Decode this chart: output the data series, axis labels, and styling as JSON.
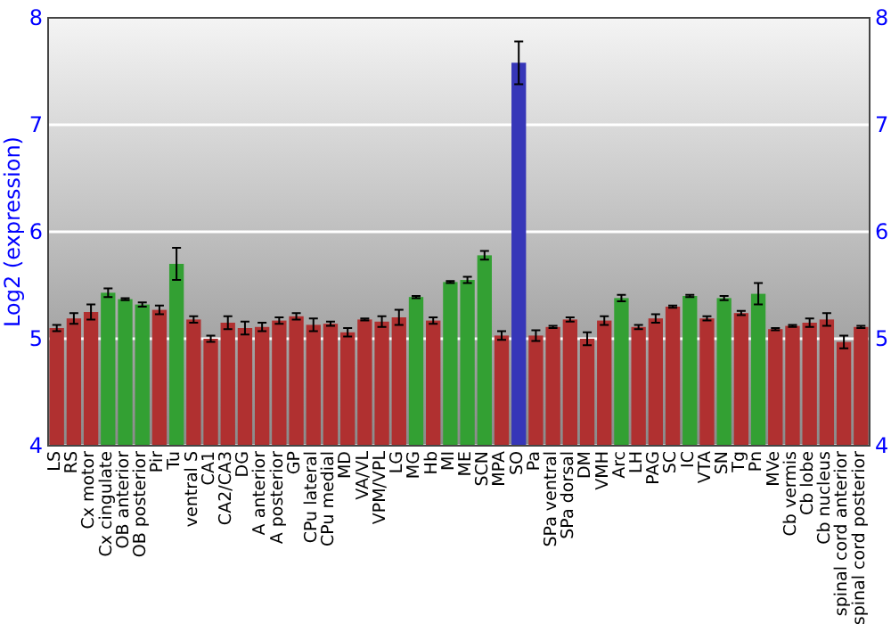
{
  "chart_data": {
    "type": "bar",
    "ylabel": "Log2 (expression)",
    "categories": [
      "LS",
      "RS",
      "Cx motor",
      "Cx cingulate",
      "OB anterior",
      "OB posterior",
      "Pir",
      "Tu",
      "ventral S",
      "CA1",
      "CA2/CA3",
      "DG",
      "A anterior",
      "A posterior",
      "GP",
      "CPu lateral",
      "CPu medial",
      "MD",
      "VA/VL",
      "VPM/VPL",
      "LG",
      "MG",
      "Hb",
      "MI",
      "ME",
      "SCN",
      "MPA",
      "SO",
      "Pa",
      "SPa ventral",
      "SPa dorsal",
      "DM",
      "VMH",
      "Arc",
      "LH",
      "PAG",
      "SC",
      "IC",
      "VTA",
      "SN",
      "Tg",
      "Pn",
      "MVe",
      "Cb vermis",
      "Cb lobe",
      "Cb nucleus",
      "spinal cord anterior",
      "spinal cord posterior"
    ],
    "values": [
      5.1,
      5.19,
      5.25,
      5.43,
      5.37,
      5.32,
      5.27,
      5.7,
      5.18,
      5.0,
      5.15,
      5.1,
      5.11,
      5.17,
      5.21,
      5.13,
      5.14,
      5.06,
      5.18,
      5.16,
      5.2,
      5.39,
      5.17,
      5.53,
      5.55,
      5.78,
      5.03,
      7.58,
      5.03,
      5.11,
      5.18,
      5.0,
      5.17,
      5.38,
      5.11,
      5.19,
      5.3,
      5.4,
      5.19,
      5.38,
      5.24,
      5.42,
      5.09,
      5.12,
      5.15,
      5.18,
      4.97,
      5.11
    ],
    "errors": [
      0.03,
      0.05,
      0.07,
      0.04,
      0.01,
      0.02,
      0.04,
      0.15,
      0.03,
      0.03,
      0.06,
      0.06,
      0.04,
      0.03,
      0.03,
      0.06,
      0.02,
      0.04,
      0.01,
      0.05,
      0.07,
      0.01,
      0.03,
      0.01,
      0.03,
      0.04,
      0.04,
      0.2,
      0.05,
      0.01,
      0.02,
      0.06,
      0.04,
      0.03,
      0.02,
      0.04,
      0.01,
      0.01,
      0.02,
      0.02,
      0.02,
      0.1,
      0.01,
      0.01,
      0.04,
      0.06,
      0.06,
      0.01
    ],
    "colors": [
      "#b03030",
      "#b03030",
      "#b03030",
      "#33a033",
      "#33a033",
      "#33a033",
      "#b03030",
      "#33a033",
      "#b03030",
      "#b03030",
      "#b03030",
      "#b03030",
      "#b03030",
      "#b03030",
      "#b03030",
      "#b03030",
      "#b03030",
      "#b03030",
      "#b03030",
      "#b03030",
      "#b03030",
      "#33a033",
      "#b03030",
      "#33a033",
      "#33a033",
      "#33a033",
      "#b03030",
      "#3636b8",
      "#b03030",
      "#b03030",
      "#b03030",
      "#b03030",
      "#b03030",
      "#33a033",
      "#b03030",
      "#b03030",
      "#b03030",
      "#33a033",
      "#b03030",
      "#33a033",
      "#b03030",
      "#33a033",
      "#b03030",
      "#b03030",
      "#b03030",
      "#b03030",
      "#b03030",
      "#b03030"
    ],
    "ylim": [
      4,
      8
    ],
    "yticks": [
      4,
      5,
      6,
      7,
      8
    ],
    "y2lim": [
      4,
      8
    ],
    "y2ticks": [
      4,
      5,
      6,
      7,
      8
    ],
    "grid": "y"
  }
}
